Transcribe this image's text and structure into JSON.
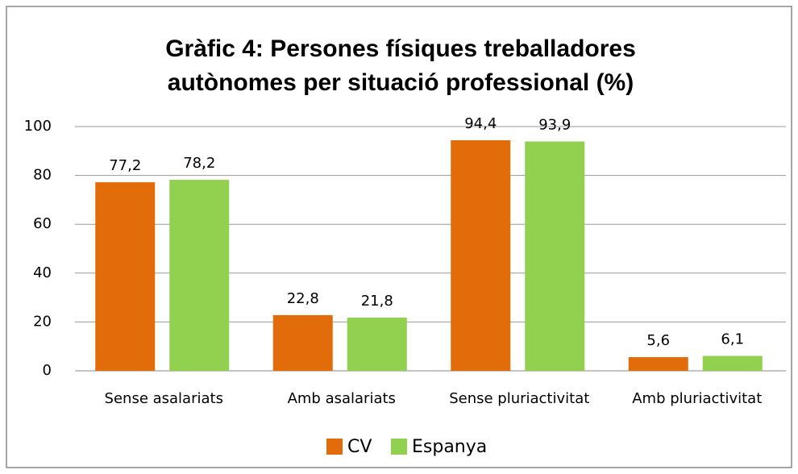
{
  "chart_data": {
    "type": "bar",
    "title": [
      "Gràfic 4: Persones físiques treballadores",
      "autònomes per situació professional (%)"
    ],
    "categories": [
      "Sense asalariats",
      "Amb asalariats",
      "Sense pluriactivitat",
      "Amb pluriactivitat"
    ],
    "series": [
      {
        "name": "CV",
        "color": "#e36c0a",
        "values": [
          77.2,
          22.8,
          94.4,
          5.6
        ],
        "value_labels": [
          "77,2",
          "22,8",
          "94,4",
          "5,6"
        ]
      },
      {
        "name": "Espanya",
        "color": "#92d050",
        "values": [
          78.2,
          21.8,
          93.9,
          6.1
        ],
        "value_labels": [
          "78,2",
          "21,8",
          "93,9",
          "6,1"
        ]
      }
    ],
    "ylim": [
      0,
      100
    ],
    "yticks": [
      0,
      20,
      40,
      60,
      80,
      100
    ],
    "grid": true,
    "legend": "bottom"
  }
}
